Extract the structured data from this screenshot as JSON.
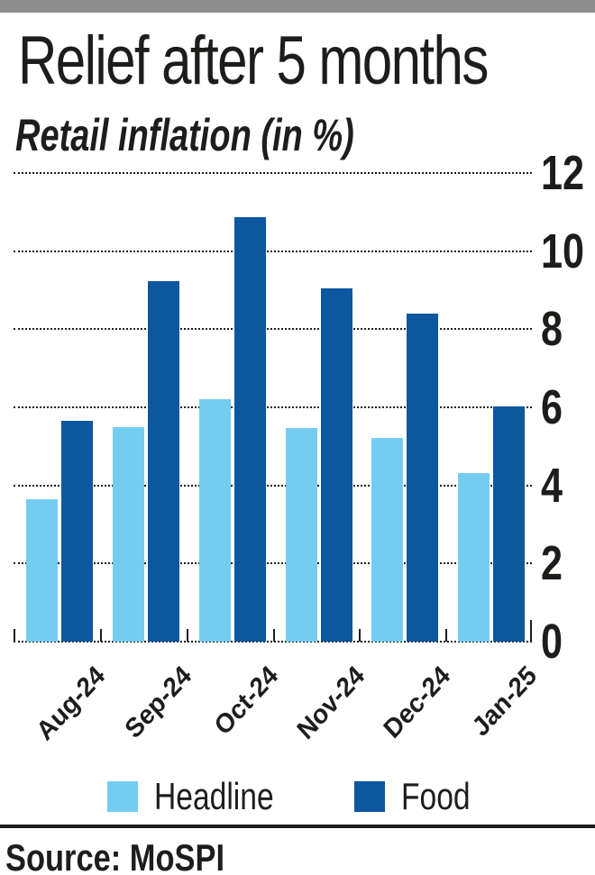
{
  "header": {
    "title": "Relief after 5 months",
    "subtitle": "Retail inflation (in %)"
  },
  "chart_data": {
    "type": "bar",
    "title": "Relief after 5 months",
    "subtitle": "Retail inflation (in %)",
    "categories": [
      "Aug-24",
      "Sep-24",
      "Oct-24",
      "Nov-24",
      "Dec-24",
      "Jan-25"
    ],
    "series": [
      {
        "name": "Headline",
        "color": "#74cdf1",
        "values": [
          3.65,
          5.49,
          6.21,
          5.48,
          5.22,
          4.31
        ]
      },
      {
        "name": "Food",
        "color": "#0d579f",
        "values": [
          5.66,
          9.24,
          10.87,
          9.04,
          8.39,
          6.02
        ]
      }
    ],
    "xlabel": "",
    "ylabel": "Retail inflation (in %)",
    "ylim": [
      0,
      12
    ],
    "yticks": [
      0,
      2,
      4,
      6,
      8,
      10,
      12
    ],
    "grid": "horizontal-dotted",
    "legend_position": "bottom"
  },
  "legend": {
    "items": [
      {
        "label": "Headline",
        "color": "#74cdf1"
      },
      {
        "label": "Food",
        "color": "#0d579f"
      }
    ]
  },
  "footer": {
    "source": "Source: MoSPI"
  },
  "colors": {
    "headline": "#74cdf1",
    "food": "#0d579f",
    "text": "#1d1d1b",
    "top_bar": "#8d8d8d"
  }
}
